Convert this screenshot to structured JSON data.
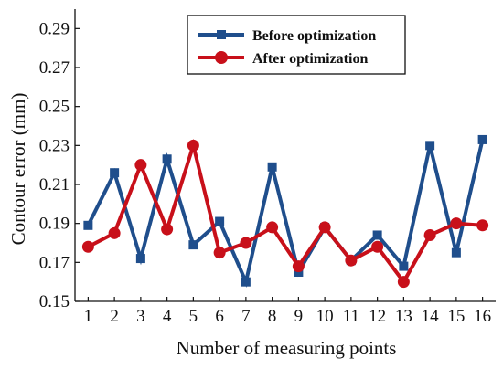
{
  "chart_data": {
    "type": "line",
    "xlabel": "Number of measuring points",
    "ylabel": "Contour error (mm)",
    "x": [
      1,
      2,
      3,
      4,
      5,
      6,
      7,
      8,
      9,
      10,
      11,
      12,
      13,
      14,
      15,
      16
    ],
    "xlim": [
      0.5,
      16.5
    ],
    "ylim": [
      0.15,
      0.3
    ],
    "y_ticks": [
      "0.15",
      "0.17",
      "0.19",
      "0.21",
      "0.23",
      "0.25",
      "0.27",
      "0.29"
    ],
    "x_ticks": [
      "1",
      "2",
      "3",
      "4",
      "5",
      "6",
      "7",
      "8",
      "9",
      "10",
      "11",
      "12",
      "13",
      "14",
      "15",
      "16"
    ],
    "grid": false,
    "legend_position": "top-center",
    "series": [
      {
        "name": "Before optimization",
        "color": "#1f4e8c",
        "marker": "square",
        "values": [
          0.189,
          0.216,
          0.172,
          0.223,
          0.179,
          0.191,
          0.16,
          0.219,
          0.165,
          0.188,
          0.171,
          0.184,
          0.168,
          0.23,
          0.175,
          0.233
        ]
      },
      {
        "name": "After optimization",
        "color": "#c8101a",
        "marker": "circle",
        "values": [
          0.178,
          0.185,
          0.22,
          0.187,
          0.23,
          0.175,
          0.18,
          0.188,
          0.168,
          0.188,
          0.171,
          0.178,
          0.16,
          0.184,
          0.19,
          0.189
        ]
      }
    ]
  }
}
